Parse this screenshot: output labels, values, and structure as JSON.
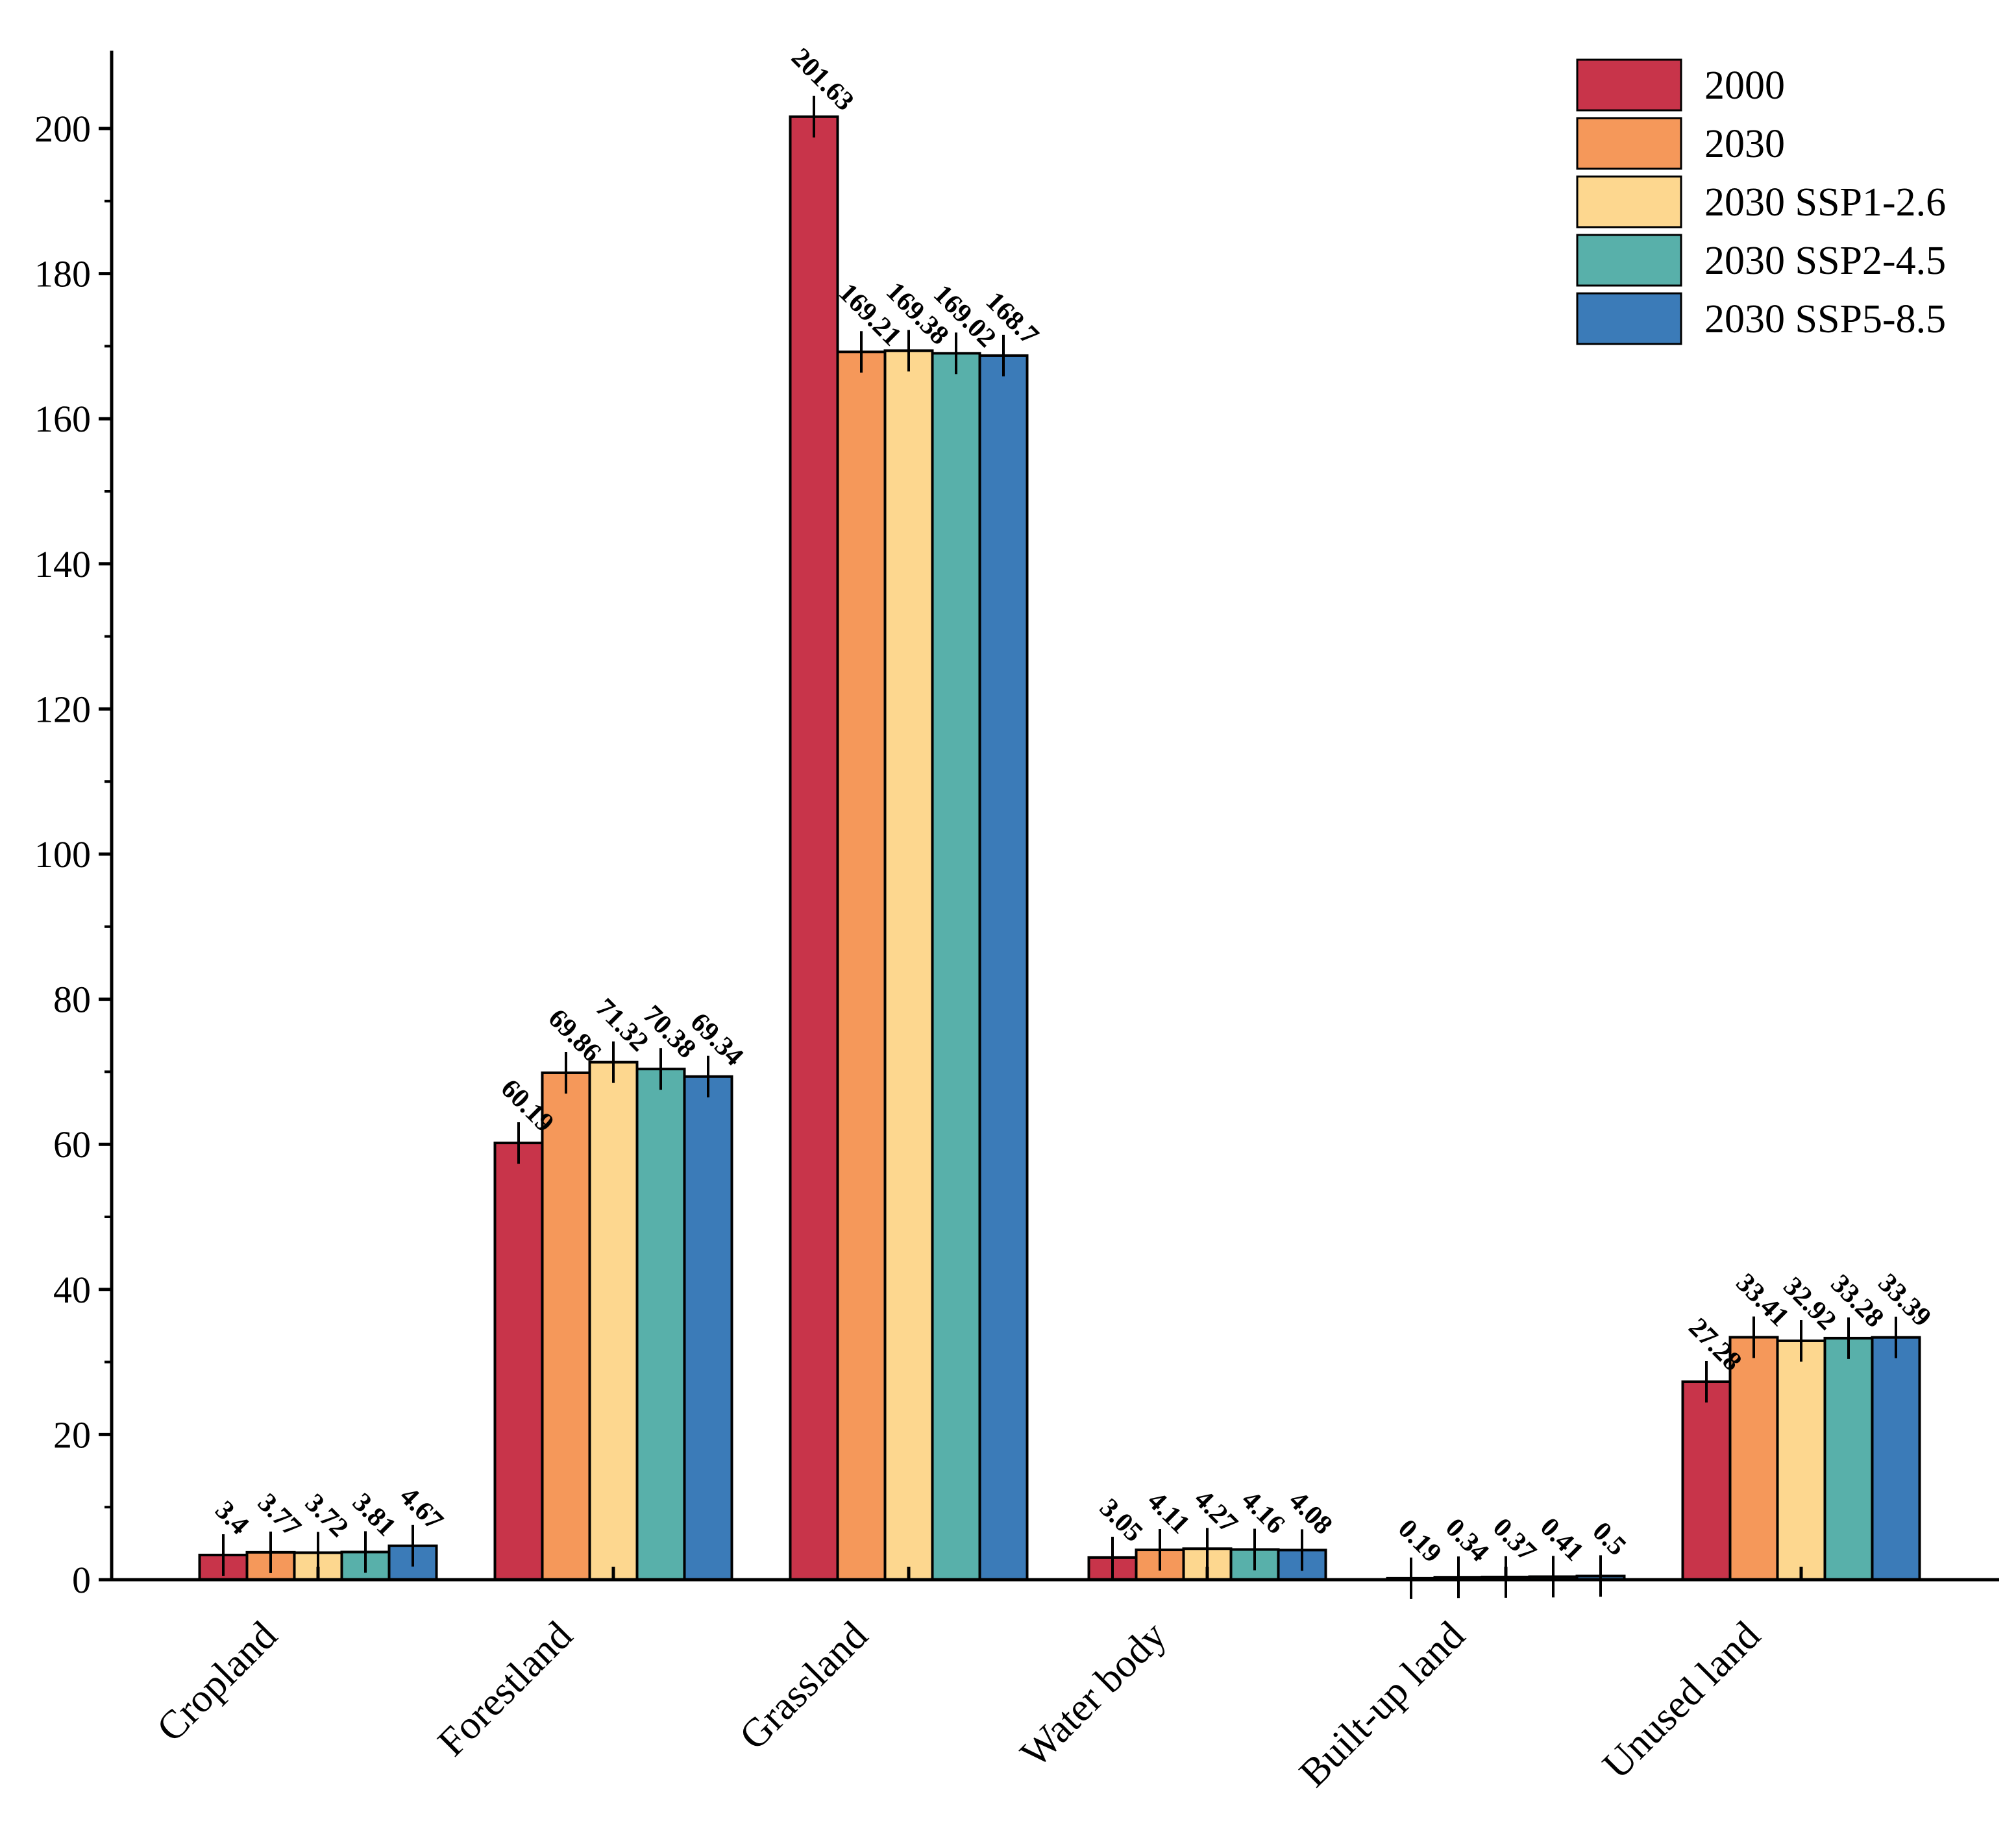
{
  "chart_data": {
    "type": "bar",
    "title": "",
    "xlabel": "",
    "ylabel": "",
    "ylim": [
      0,
      210
    ],
    "yticks": [
      0,
      20,
      40,
      60,
      80,
      100,
      120,
      140,
      160,
      180,
      200
    ],
    "categories": [
      "Cropland",
      "Forestland",
      "Grassland",
      "Water body",
      "Built-up land",
      "Unused land"
    ],
    "legend_position": "top-right",
    "series": [
      {
        "name": "2000",
        "color": "#c8344a",
        "values": [
          3.4,
          60.19,
          201.63,
          3.05,
          0.19,
          27.28
        ],
        "labels": [
          "3.4",
          "60.19",
          "201.63",
          "3.05",
          "0.19",
          "27.28"
        ]
      },
      {
        "name": "2030",
        "color": "#f5985a",
        "values": [
          3.77,
          69.86,
          169.21,
          4.11,
          0.34,
          33.41
        ],
        "labels": [
          "3.77",
          "69.86",
          "169.21",
          "4.11",
          "0.34",
          "33.41"
        ]
      },
      {
        "name": "2030 SSP1-2.6",
        "color": "#fdd78f",
        "values": [
          3.72,
          71.32,
          169.38,
          4.27,
          0.37,
          32.92
        ],
        "labels": [
          "3.72",
          "71.32",
          "169.38",
          "4.27",
          "0.37",
          "32.92"
        ]
      },
      {
        "name": "2030 SSP2-4.5",
        "color": "#58b0aa",
        "values": [
          3.81,
          70.38,
          169.02,
          4.16,
          0.41,
          33.28
        ],
        "labels": [
          "3.81",
          "70.38",
          "169.02",
          "4.16",
          "0.41",
          "33.28"
        ]
      },
      {
        "name": "2030 SSP5-8.5",
        "color": "#3b7bb8",
        "values": [
          4.67,
          69.34,
          168.7,
          4.08,
          0.5,
          33.39
        ],
        "labels": [
          "4.67",
          "69.34",
          "168.7",
          "4.08",
          "0.5",
          "33.39"
        ]
      }
    ]
  }
}
